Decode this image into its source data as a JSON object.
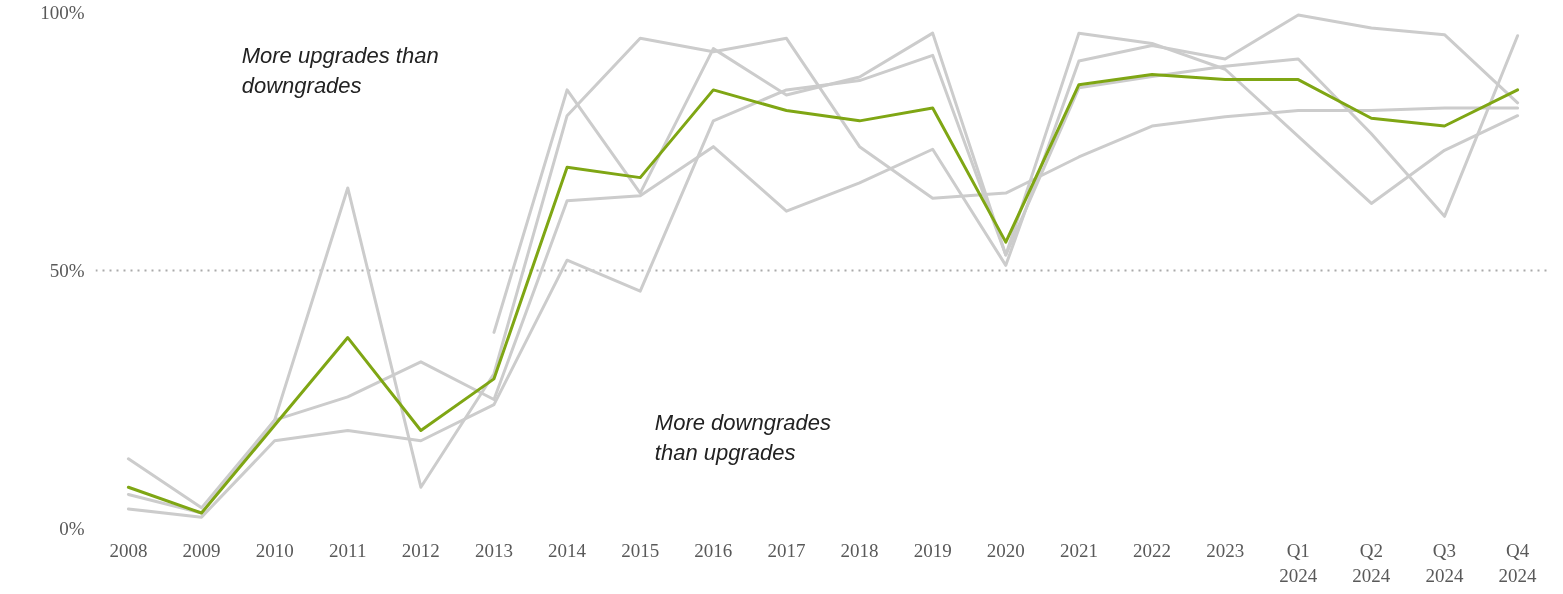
{
  "chart_data": {
    "type": "line",
    "categories": [
      "2008",
      "2009",
      "2010",
      "2011",
      "2012",
      "2013",
      "2014",
      "2015",
      "2016",
      "2017",
      "2018",
      "2019",
      "2020",
      "2021",
      "2022",
      "2023",
      "Q1 2024",
      "Q2 2024",
      "Q3 2024",
      "Q4 2024"
    ],
    "series": [
      {
        "color": "#cccccc",
        "values": [
          13.5,
          4,
          21,
          66,
          8,
          30,
          80,
          95,
          92.4,
          95,
          74,
          64,
          65,
          72,
          78,
          79.8,
          81,
          81,
          81.5,
          81.5
        ]
      },
      {
        "color": "#cccccc",
        "values": [
          6.6,
          3,
          21,
          25.5,
          32.3,
          25,
          63.5,
          64.5,
          74,
          61.5,
          67,
          73.5,
          51,
          90.6,
          93.6,
          91,
          99.5,
          97,
          95.7,
          82.5
        ]
      },
      {
        "color": "#cccccc",
        "values": [
          3.8,
          2.2,
          17,
          19,
          17,
          24,
          52,
          46,
          79,
          85,
          86.8,
          91.7,
          53,
          85.4,
          87.6,
          89.6,
          91,
          76.5,
          60.5,
          95.5
        ]
      },
      {
        "color": "#cccccc",
        "values": [
          null,
          null,
          null,
          null,
          null,
          38,
          85,
          65,
          93,
          84,
          87.5,
          96,
          53,
          96,
          94,
          89,
          76,
          63,
          73.3,
          80
        ]
      },
      {
        "color": "#7fa614",
        "values": [
          8,
          3,
          20,
          37,
          19,
          29,
          70,
          68,
          85,
          81,
          79,
          81.5,
          55.5,
          86,
          88,
          87,
          87,
          79.5,
          78,
          85
        ]
      }
    ],
    "ylim": [
      0,
      100
    ],
    "yticks": [
      {
        "value": 0,
        "label": "0%"
      },
      {
        "value": 50,
        "label": "50%"
      },
      {
        "value": 100,
        "label": "100%"
      }
    ],
    "grid": "y",
    "annotations": [
      "More upgrades than downgrades",
      "More downgrades than upgrades"
    ]
  }
}
